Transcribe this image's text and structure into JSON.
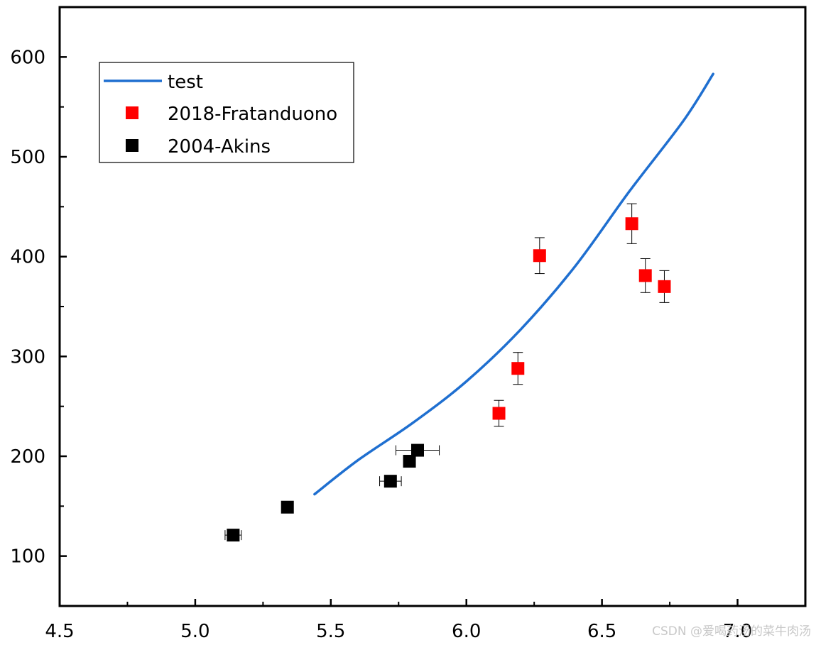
{
  "chart_data": {
    "type": "scatter",
    "title": "",
    "xlabel": "",
    "ylabel": "",
    "xlim": [
      4.5,
      7.25
    ],
    "ylim": [
      50,
      650
    ],
    "x_ticks": [
      4.5,
      5.0,
      5.5,
      6.0,
      6.5,
      7.0
    ],
    "x_tick_labels": [
      "4.5",
      "5.0",
      "5.5",
      "6.0",
      "6.5",
      "7.0"
    ],
    "y_ticks": [
      100,
      200,
      300,
      400,
      500,
      600
    ],
    "y_tick_labels": [
      "100",
      "200",
      "300",
      "400",
      "500",
      "600"
    ],
    "grid": false,
    "legend_position": "top-left",
    "series": [
      {
        "name": "test",
        "kind": "line",
        "color": "#1f6fd0",
        "x": [
          5.44,
          5.6,
          5.8,
          6.0,
          6.2,
          6.4,
          6.6,
          6.8,
          6.91
        ],
        "y": [
          162,
          196,
          233,
          275,
          327,
          390,
          465,
          536,
          583
        ]
      },
      {
        "name": "2018-Fratanduono",
        "kind": "scatter",
        "color": "#ff0000",
        "points": [
          {
            "x": 6.12,
            "y": 243,
            "yerr": 13
          },
          {
            "x": 6.19,
            "y": 288,
            "yerr": 16
          },
          {
            "x": 6.27,
            "y": 401,
            "yerr": 18
          },
          {
            "x": 6.61,
            "y": 433,
            "yerr": 20
          },
          {
            "x": 6.66,
            "y": 381,
            "yerr": 17
          },
          {
            "x": 6.73,
            "y": 370,
            "yerr": 16
          }
        ]
      },
      {
        "name": "2004-Akins",
        "kind": "scatter",
        "color": "#000000",
        "points": [
          {
            "x": 5.14,
            "y": 121,
            "xerr": 0.03
          },
          {
            "x": 5.34,
            "y": 149,
            "xerr": 0.0
          },
          {
            "x": 5.72,
            "y": 175,
            "xerr": 0.04
          },
          {
            "x": 5.79,
            "y": 195,
            "xerr": 0.0
          },
          {
            "x": 5.82,
            "y": 206,
            "xerr": 0.08
          }
        ]
      }
    ]
  },
  "watermark": {
    "text": "CSDN @爱喝药汤的菜牛肉汤"
  }
}
